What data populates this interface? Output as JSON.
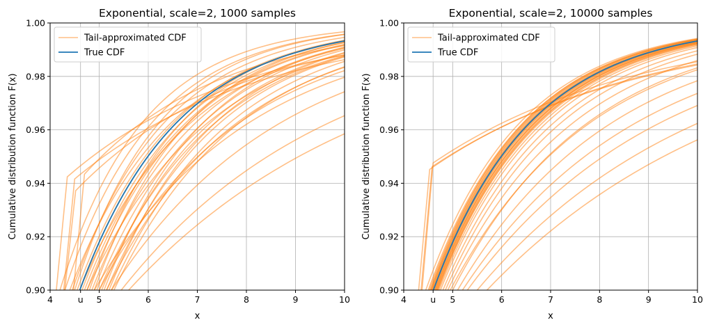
{
  "chart_data": [
    {
      "type": "line",
      "title": "Exponential, scale=2, 1000 samples",
      "xlabel": "x",
      "ylabel": "Cumulative distribution function F(x)",
      "xlim": [
        4,
        10
      ],
      "ylim": [
        0.9,
        1.0
      ],
      "xticks": [
        {
          "value": 4,
          "label": "4"
        },
        {
          "value": 4.62,
          "label": "u"
        },
        {
          "value": 5,
          "label": "5"
        },
        {
          "value": 6,
          "label": "6"
        },
        {
          "value": 7,
          "label": "7"
        },
        {
          "value": 8,
          "label": "8"
        },
        {
          "value": 9,
          "label": "9"
        },
        {
          "value": 10,
          "label": "10"
        }
      ],
      "yticks": [
        "0.90",
        "0.92",
        "0.94",
        "0.96",
        "0.98",
        "1.00"
      ],
      "grid": true,
      "legend": {
        "placement": "top-left",
        "entries": [
          {
            "label": "Tail-approximated CDF",
            "color": "#ff7f0e"
          },
          {
            "label": "True CDF",
            "color": "#1f77b4"
          }
        ]
      },
      "series": [
        {
          "name": "True CDF",
          "scale": 2,
          "x_range": [
            4.6,
            10
          ],
          "color": "#1f77b4"
        }
      ],
      "tail_curves": {
        "color": "#ff7f0e",
        "count": 34,
        "jumps": [
          {
            "u": 4.35,
            "y_start": 0.9424,
            "scale": 3.6
          },
          {
            "u": 4.5,
            "y_start": 0.9416,
            "scale": 3.8
          },
          {
            "u": 4.52,
            "y_start": 0.9372,
            "scale": 3.3
          },
          {
            "u": 4.7,
            "y_start": 0.9434,
            "scale": 2.8
          }
        ],
        "low": [
          {
            "cross": 4.2,
            "scale": 1.7
          },
          {
            "cross": 4.3,
            "scale": 1.8
          },
          {
            "cross": 4.45,
            "scale": 1.9
          },
          {
            "cross": 4.55,
            "scale": 2.0
          },
          {
            "cross": 4.6,
            "scale": 2.0
          },
          {
            "cross": 4.65,
            "scale": 2.05
          },
          {
            "cross": 4.7,
            "scale": 2.1
          },
          {
            "cross": 4.75,
            "scale": 2.1
          },
          {
            "cross": 4.85,
            "scale": 2.15
          },
          {
            "cross": 4.95,
            "scale": 2.2
          },
          {
            "cross": 5.05,
            "scale": 2.25
          },
          {
            "cross": 5.15,
            "scale": 2.35
          },
          {
            "cross": 5.25,
            "scale": 2.45
          },
          {
            "cross": 5.2,
            "scale": 2.2
          },
          {
            "cross": 5.1,
            "scale": 2.05
          },
          {
            "cross": 4.9,
            "scale": 1.95
          },
          {
            "cross": 4.8,
            "scale": 1.9
          },
          {
            "cross": 4.5,
            "scale": 1.75
          },
          {
            "cross": 5.3,
            "scale": 2.6
          },
          {
            "cross": 4.4,
            "scale": 2.1
          },
          {
            "cross": 5.0,
            "scale": 2.4
          },
          {
            "cross": 4.6,
            "scale": 2.3
          },
          {
            "cross": 5.15,
            "scale": 2.7
          },
          {
            "cross": 4.75,
            "scale": 2.5
          },
          {
            "cross": 5.0,
            "scale": 2.9
          },
          {
            "cross": 4.9,
            "scale": 3.2
          },
          {
            "cross": 5.25,
            "scale": 3.5
          },
          {
            "cross": 5.45,
            "scale": 4.3
          },
          {
            "cross": 5.6,
            "scale": 5.0
          }
        ]
      }
    },
    {
      "type": "line",
      "title": "Exponential, scale=2, 10000 samples",
      "xlabel": "x",
      "ylabel": "Cumulative distribution function F(x)",
      "xlim": [
        4,
        10
      ],
      "ylim": [
        0.9,
        1.0
      ],
      "xticks": [
        {
          "value": 4,
          "label": "4"
        },
        {
          "value": 4.6,
          "label": "u"
        },
        {
          "value": 5,
          "label": "5"
        },
        {
          "value": 6,
          "label": "6"
        },
        {
          "value": 7,
          "label": "7"
        },
        {
          "value": 8,
          "label": "8"
        },
        {
          "value": 9,
          "label": "9"
        },
        {
          "value": 10,
          "label": "10"
        }
      ],
      "yticks": [
        "0.90",
        "0.92",
        "0.94",
        "0.96",
        "0.98",
        "1.00"
      ],
      "grid": true,
      "legend": {
        "placement": "top-left",
        "entries": [
          {
            "label": "Tail-approximated CDF",
            "color": "#ff7f0e"
          },
          {
            "label": "True CDF",
            "color": "#1f77b4"
          }
        ]
      },
      "series": [
        {
          "name": "True CDF",
          "scale": 2,
          "x_range": [
            4.6,
            10
          ],
          "color": "#1f77b4"
        }
      ],
      "tail_curves": {
        "color": "#ff7f0e",
        "count": 40,
        "jumps": [
          {
            "u": 4.53,
            "y_start": 0.9452,
            "scale": 4.3
          },
          {
            "u": 4.58,
            "y_start": 0.9462,
            "scale": 4.4
          },
          {
            "u": 4.6,
            "y_start": 0.9476,
            "scale": 4.2
          }
        ],
        "low": [
          {
            "cross": 4.45,
            "scale": 1.95
          },
          {
            "cross": 4.5,
            "scale": 1.97
          },
          {
            "cross": 4.52,
            "scale": 1.98
          },
          {
            "cross": 4.55,
            "scale": 1.99
          },
          {
            "cross": 4.57,
            "scale": 2.0
          },
          {
            "cross": 4.58,
            "scale": 2.0
          },
          {
            "cross": 4.6,
            "scale": 2.0
          },
          {
            "cross": 4.61,
            "scale": 2.01
          },
          {
            "cross": 4.62,
            "scale": 2.02
          },
          {
            "cross": 4.63,
            "scale": 2.03
          },
          {
            "cross": 4.65,
            "scale": 2.04
          },
          {
            "cross": 4.66,
            "scale": 2.05
          },
          {
            "cross": 4.68,
            "scale": 2.06
          },
          {
            "cross": 4.7,
            "scale": 2.08
          },
          {
            "cross": 4.56,
            "scale": 1.96
          },
          {
            "cross": 4.54,
            "scale": 1.94
          },
          {
            "cross": 4.59,
            "scale": 2.02
          },
          {
            "cross": 4.64,
            "scale": 2.07
          },
          {
            "cross": 4.67,
            "scale": 2.1
          },
          {
            "cross": 4.69,
            "scale": 2.12
          },
          {
            "cross": 4.72,
            "scale": 2.15
          },
          {
            "cross": 4.75,
            "scale": 2.2
          },
          {
            "cross": 4.8,
            "scale": 2.3
          },
          {
            "cross": 4.85,
            "scale": 2.4
          },
          {
            "cross": 4.9,
            "scale": 2.6
          },
          {
            "cross": 5.0,
            "scale": 2.8
          },
          {
            "cross": 4.95,
            "scale": 2.9
          },
          {
            "cross": 5.1,
            "scale": 3.2
          },
          {
            "cross": 5.2,
            "scale": 3.6
          },
          {
            "cross": 5.3,
            "scale": 4.0
          },
          {
            "cross": 5.5,
            "scale": 4.6
          },
          {
            "cross": 5.7,
            "scale": 5.2
          }
        ]
      }
    }
  ]
}
